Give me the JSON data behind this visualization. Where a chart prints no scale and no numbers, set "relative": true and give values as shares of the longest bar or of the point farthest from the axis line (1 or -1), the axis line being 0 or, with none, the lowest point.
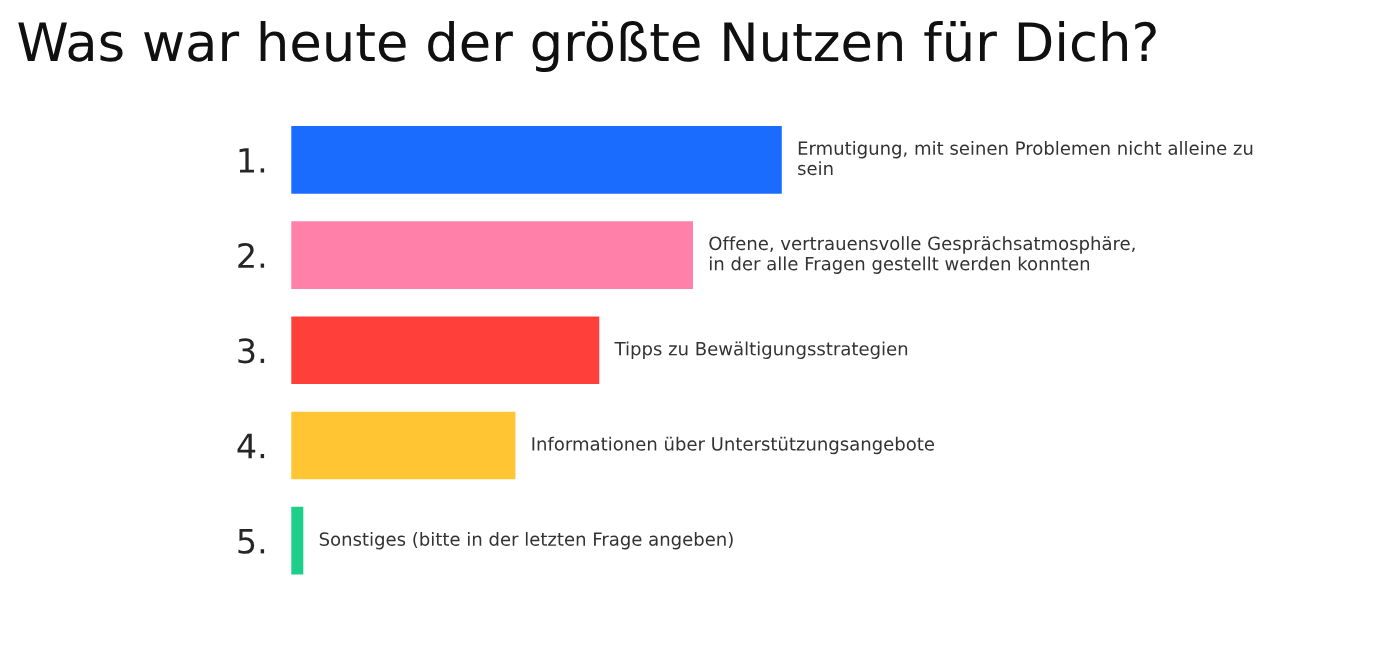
{
  "chart_data": {
    "type": "bar",
    "orientation": "horizontal",
    "relative": true,
    "title": "Was war heute der größte Nutzen für Dich?",
    "categories": [
      "1.",
      "2.",
      "3.",
      "4.",
      "5."
    ],
    "values": [
      1,
      0.82,
      0.63,
      0.46,
      0.03
    ],
    "colors": [
      "#1a6cff",
      "#ff80a8",
      "#ff403a",
      "#ffc533",
      "#1ecf8a"
    ],
    "annotations": [
      {
        "text": "Ermutigung, mit seinen Problemen nicht alleine zu\nsein",
        "x": 1,
        "y": "1."
      },
      {
        "text": "Offene, vertrauensvolle Gesprächsatmosphäre,\nin der alle Fragen gestellt werden konnten",
        "x": 0.82,
        "y": "2."
      },
      {
        "text": "Tipps zu Bewältigungsstrategien",
        "x": 0.63,
        "y": "3."
      },
      {
        "text": "Informationen über Unterstützungsangebote",
        "x": 0.46,
        "y": "4."
      },
      {
        "text": "Sonstiges (bitte in der letzten Frage angeben)",
        "x": 0.03,
        "y": "5."
      }
    ],
    "grid": false,
    "legend": false
  }
}
